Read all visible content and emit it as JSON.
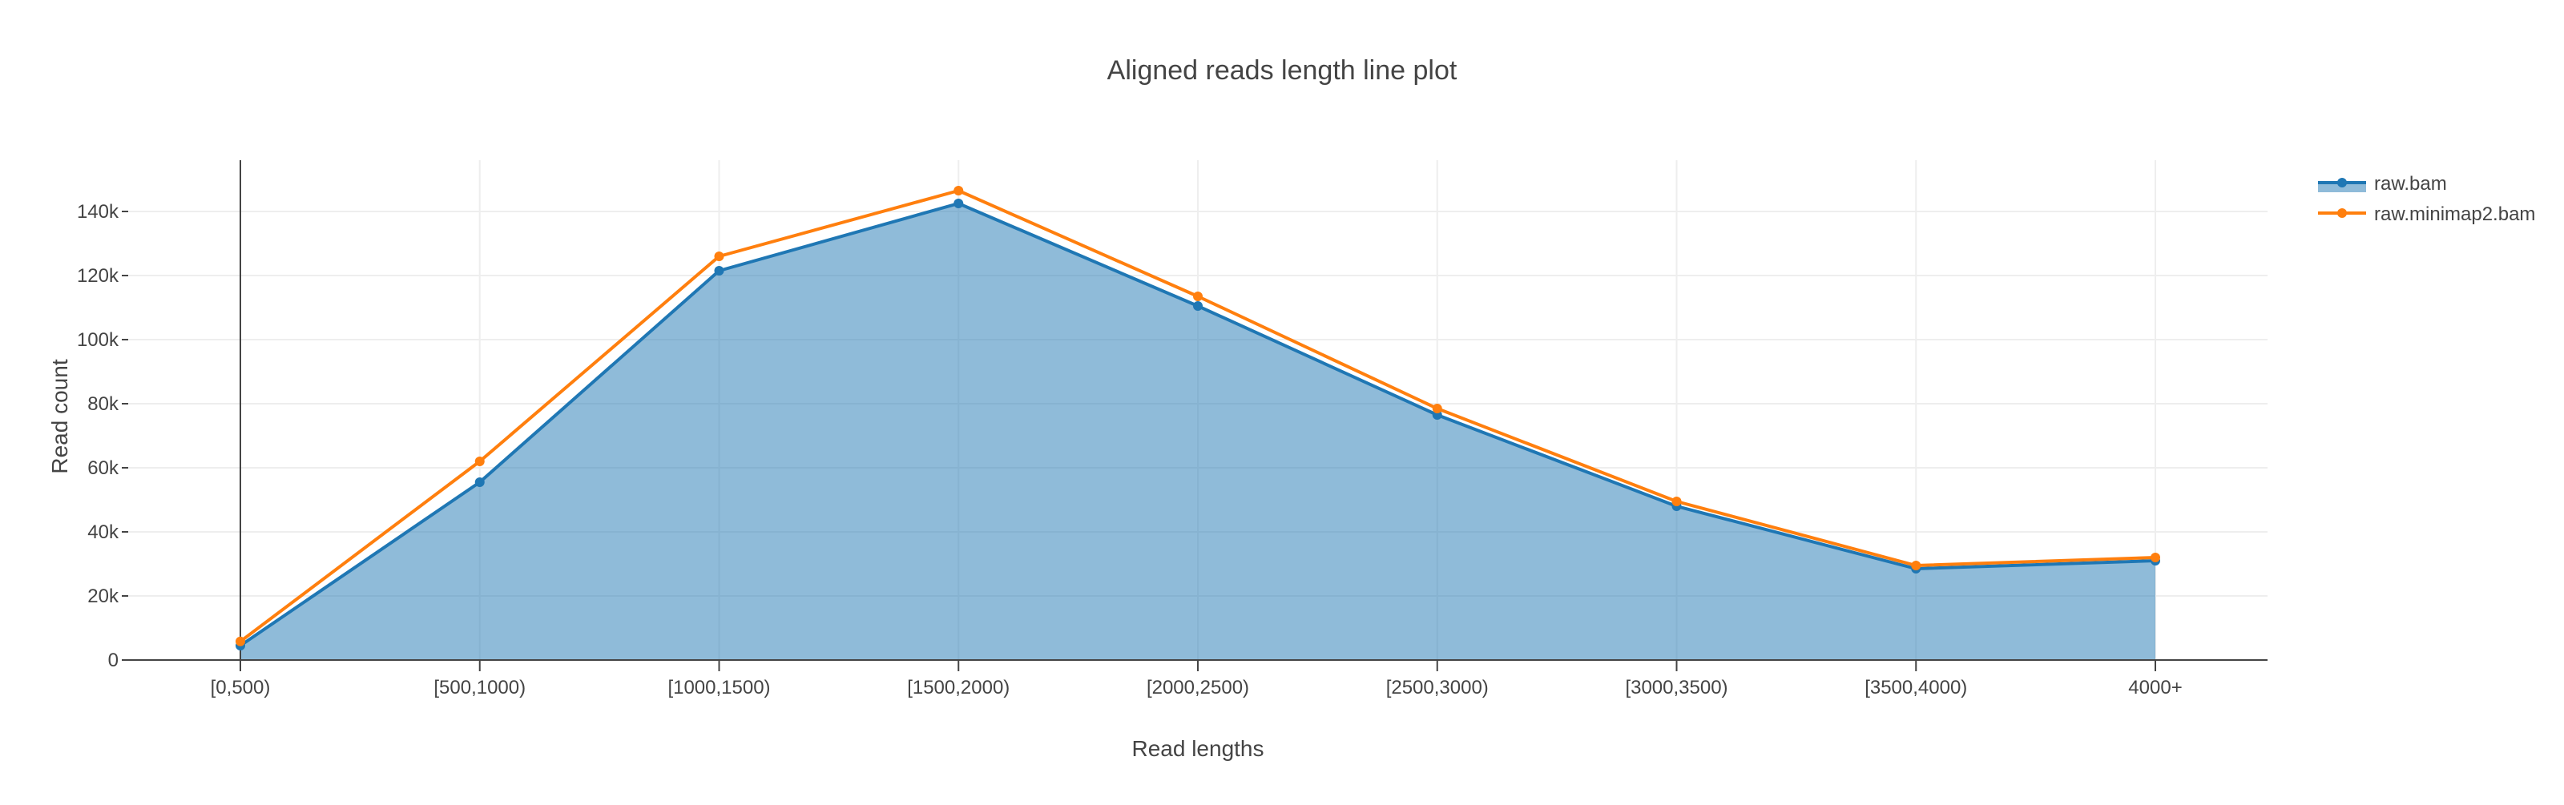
{
  "chart_data": {
    "type": "line",
    "title": "Aligned reads length line plot",
    "xlabel": "Read lengths",
    "ylabel": "Read count",
    "categories": [
      "[0,500)",
      "[500,1000)",
      "[1000,1500)",
      "[1500,2000)",
      "[2000,2500)",
      "[2500,3000)",
      "[3000,3500)",
      "[3500,4000)",
      "4000+"
    ],
    "ylim": [
      0,
      156000
    ],
    "yticks": [
      0,
      20000,
      40000,
      60000,
      80000,
      100000,
      120000,
      140000
    ],
    "ytick_labels": [
      "0",
      "20k",
      "40k",
      "60k",
      "80k",
      "100k",
      "120k",
      "140k"
    ],
    "grid": true,
    "legend_position": "top-right",
    "series": [
      {
        "name": "raw.bam",
        "values": [
          4500,
          55500,
          121500,
          142500,
          110500,
          76500,
          48000,
          28500,
          31000
        ],
        "color": "#1f77b4",
        "fill": true,
        "fill_color": "rgba(31,119,180,0.5)"
      },
      {
        "name": "raw.minimap2.bam",
        "values": [
          5800,
          62000,
          126000,
          146500,
          113500,
          78500,
          49500,
          29500,
          32000
        ],
        "color": "#ff7f0e",
        "fill": false
      }
    ]
  }
}
